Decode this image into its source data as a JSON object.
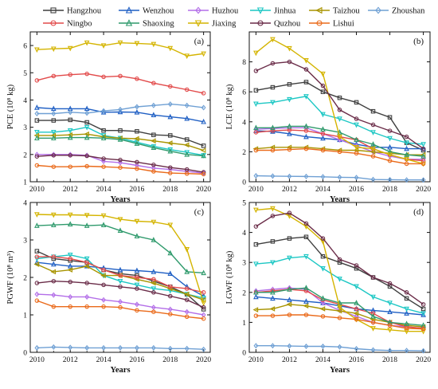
{
  "figure": {
    "legend": [
      {
        "name": "Hangzhou",
        "color": "#3f3f3f",
        "marker": "square"
      },
      {
        "name": "Wenzhou",
        "color": "#1f5fc4",
        "marker": "triangle-up"
      },
      {
        "name": "Huzhou",
        "color": "#b36ee8",
        "marker": "diamond"
      },
      {
        "name": "Jinhua",
        "color": "#1cc7c4",
        "marker": "triangle-down"
      },
      {
        "name": "Taizhou",
        "color": "#a89400",
        "marker": "triangle-left"
      },
      {
        "name": "Zhoushan",
        "color": "#6fa0d4",
        "marker": "diamond"
      },
      {
        "name": "Ningbo",
        "color": "#e24a4a",
        "marker": "circle"
      },
      {
        "name": "Shaoxing",
        "color": "#2f9a6c",
        "marker": "triangle-up"
      },
      {
        "name": "Jiaxing",
        "color": "#d4b400",
        "marker": "triangle-down"
      },
      {
        "name": "Quzhou",
        "color": "#6a2c48",
        "marker": "circle"
      },
      {
        "name": "Lishui",
        "color": "#ea6a1a",
        "marker": "circle"
      }
    ]
  },
  "chart_data": [
    {
      "type": "line",
      "panel_label": "(a)",
      "xlabel": "Years",
      "ylabel": "PCE (10⁸ kg)",
      "x": [
        2010,
        2011,
        2012,
        2013,
        2014,
        2015,
        2016,
        2017,
        2018,
        2019,
        2020
      ],
      "xticks": [
        "2010",
        "2012",
        "2014",
        "2016",
        "2018",
        "2020"
      ],
      "xtick_values": [
        2010,
        2012,
        2014,
        2016,
        2018,
        2020
      ],
      "ylim": [
        1,
        6.5
      ],
      "yticks": [
        "1",
        "2",
        "3",
        "4",
        "5",
        "6"
      ],
      "ytick_values": [
        1,
        2,
        3,
        4,
        5,
        6
      ],
      "series": [
        {
          "name": "Hangzhou",
          "values": [
            3.25,
            3.25,
            3.27,
            3.18,
            2.88,
            2.88,
            2.85,
            2.72,
            2.7,
            2.55,
            2.32
          ]
        },
        {
          "name": "Wenzhou",
          "values": [
            3.72,
            3.68,
            3.68,
            3.68,
            3.55,
            3.56,
            3.55,
            3.45,
            3.38,
            3.32,
            3.2
          ]
        },
        {
          "name": "Huzhou",
          "values": [
            2.0,
            2.0,
            2.0,
            1.97,
            1.75,
            1.7,
            1.6,
            1.5,
            1.45,
            1.38,
            1.32
          ]
        },
        {
          "name": "Jinhua",
          "values": [
            2.82,
            2.82,
            2.88,
            3.0,
            2.7,
            2.6,
            2.45,
            2.3,
            2.18,
            2.08,
            1.97
          ]
        },
        {
          "name": "Taizhou",
          "values": [
            2.7,
            2.7,
            2.72,
            2.75,
            2.65,
            2.6,
            2.58,
            2.5,
            2.42,
            2.35,
            2.15
          ]
        },
        {
          "name": "Zhoushan",
          "values": [
            3.5,
            3.5,
            3.55,
            3.52,
            3.6,
            3.65,
            3.75,
            3.8,
            3.85,
            3.8,
            3.72
          ]
        },
        {
          "name": "Ningbo",
          "values": [
            4.72,
            4.88,
            4.93,
            4.96,
            4.85,
            4.88,
            4.78,
            4.62,
            4.5,
            4.38,
            4.25
          ]
        },
        {
          "name": "Shaoxing",
          "values": [
            2.6,
            2.6,
            2.62,
            2.62,
            2.6,
            2.55,
            2.4,
            2.25,
            2.12,
            2.0,
            1.95
          ]
        },
        {
          "name": "Jiaxing",
          "values": [
            5.85,
            5.88,
            5.9,
            6.1,
            6.0,
            6.1,
            6.08,
            6.05,
            5.9,
            5.62,
            5.7
          ]
        },
        {
          "name": "Quzhou",
          "values": [
            1.93,
            1.97,
            1.97,
            1.95,
            1.85,
            1.8,
            1.72,
            1.62,
            1.52,
            1.45,
            1.35
          ]
        },
        {
          "name": "Lishui",
          "values": [
            1.6,
            1.55,
            1.55,
            1.57,
            1.55,
            1.52,
            1.48,
            1.38,
            1.32,
            1.3,
            1.28
          ]
        }
      ]
    },
    {
      "type": "line",
      "panel_label": "(b)",
      "xlabel": "Years",
      "ylabel": "LCE (10⁸ kg)",
      "x": [
        2010,
        2011,
        2012,
        2013,
        2014,
        2015,
        2016,
        2017,
        2018,
        2019,
        2020
      ],
      "xticks": [
        "2010",
        "2012",
        "2014",
        "2016",
        "2018",
        "2020"
      ],
      "xtick_values": [
        2010,
        2012,
        2014,
        2016,
        2018,
        2020
      ],
      "ylim": [
        0,
        10
      ],
      "yticks": [
        "0",
        "2",
        "4",
        "6",
        "8"
      ],
      "ytick_values": [
        0,
        2,
        4,
        6,
        8
      ],
      "series": [
        {
          "name": "Hangzhou",
          "values": [
            6.1,
            6.3,
            6.5,
            6.65,
            6.0,
            5.6,
            5.3,
            4.7,
            4.3,
            2.6,
            2.1
          ]
        },
        {
          "name": "Wenzhou",
          "values": [
            3.4,
            3.35,
            3.2,
            3.0,
            2.9,
            2.8,
            2.5,
            2.3,
            2.3,
            2.2,
            2.2
          ]
        },
        {
          "name": "Huzhou",
          "values": [
            3.5,
            3.55,
            3.6,
            3.6,
            3.2,
            2.8,
            2.4,
            2.0,
            1.7,
            1.5,
            1.5
          ]
        },
        {
          "name": "Jinhua",
          "values": [
            5.2,
            5.3,
            5.5,
            5.7,
            4.5,
            4.2,
            3.8,
            3.3,
            2.9,
            2.6,
            2.5
          ]
        },
        {
          "name": "Taizhou",
          "values": [
            2.2,
            2.3,
            2.3,
            2.3,
            2.2,
            2.1,
            2.1,
            2.0,
            1.9,
            1.8,
            1.8
          ]
        },
        {
          "name": "Zhoushan",
          "values": [
            0.4,
            0.38,
            0.36,
            0.35,
            0.33,
            0.3,
            0.28,
            0.15,
            0.14,
            0.12,
            0.12
          ]
        },
        {
          "name": "Ningbo",
          "values": [
            3.3,
            3.4,
            3.45,
            3.4,
            3.2,
            3.0,
            2.8,
            2.2,
            1.8,
            1.5,
            1.4
          ]
        },
        {
          "name": "Shaoxing",
          "values": [
            3.6,
            3.6,
            3.7,
            3.7,
            3.5,
            3.3,
            2.8,
            2.5,
            2.0,
            1.8,
            1.7
          ]
        },
        {
          "name": "Jiaxing",
          "values": [
            8.6,
            9.5,
            8.9,
            8.1,
            7.2,
            3.0,
            2.3,
            2.2,
            1.8,
            1.5,
            1.2
          ]
        },
        {
          "name": "Quzhou",
          "values": [
            7.4,
            7.9,
            8.0,
            7.5,
            6.4,
            4.8,
            4.2,
            3.8,
            3.4,
            3.0,
            2.2
          ]
        },
        {
          "name": "Lishui",
          "values": [
            2.1,
            2.1,
            2.15,
            2.2,
            2.1,
            2.0,
            1.9,
            1.7,
            1.4,
            1.2,
            1.2
          ]
        }
      ]
    },
    {
      "type": "line",
      "panel_label": "(c)",
      "xlabel": "Years",
      "ylabel": "PGWF (10⁸ m³)",
      "x": [
        2010,
        2011,
        2012,
        2013,
        2014,
        2015,
        2016,
        2017,
        2018,
        2019,
        2020
      ],
      "xticks": [
        "2010",
        "2012",
        "2014",
        "2016",
        "2018",
        "2020"
      ],
      "xtick_values": [
        2010,
        2012,
        2014,
        2016,
        2018,
        2020
      ],
      "ylim": [
        0,
        4
      ],
      "yticks": [
        "0",
        "1",
        "2",
        "3",
        "4"
      ],
      "ytick_values": [
        0,
        1,
        2,
        3,
        4
      ],
      "series": [
        {
          "name": "Hangzhou",
          "values": [
            2.7,
            2.5,
            2.45,
            2.4,
            2.2,
            2.1,
            2.05,
            1.9,
            1.75,
            1.55,
            1.15
          ]
        },
        {
          "name": "Wenzhou",
          "values": [
            2.4,
            2.35,
            2.3,
            2.3,
            2.25,
            2.2,
            2.18,
            2.15,
            2.1,
            1.75,
            1.5
          ]
        },
        {
          "name": "Huzhou",
          "values": [
            1.55,
            1.53,
            1.48,
            1.48,
            1.4,
            1.35,
            1.28,
            1.2,
            1.15,
            1.08,
            1.0
          ]
        },
        {
          "name": "Jinhua",
          "values": [
            2.5,
            2.55,
            2.6,
            2.5,
            2.05,
            1.9,
            1.8,
            1.7,
            1.65,
            1.55,
            1.45
          ]
        },
        {
          "name": "Taizhou",
          "values": [
            2.35,
            2.15,
            2.2,
            2.3,
            2.05,
            2.05,
            1.95,
            1.85,
            1.7,
            1.55,
            1.4
          ]
        },
        {
          "name": "Zhoushan",
          "values": [
            0.12,
            0.14,
            0.13,
            0.12,
            0.12,
            0.12,
            0.12,
            0.12,
            0.1,
            0.1,
            0.08
          ]
        },
        {
          "name": "Ningbo",
          "values": [
            2.55,
            2.55,
            2.5,
            2.4,
            2.2,
            2.05,
            2.0,
            1.95,
            1.75,
            1.7,
            1.6
          ]
        },
        {
          "name": "Shaoxing",
          "values": [
            3.38,
            3.4,
            3.42,
            3.38,
            3.4,
            3.25,
            3.1,
            3.0,
            2.65,
            2.15,
            2.12
          ]
        },
        {
          "name": "Jiaxing",
          "values": [
            3.68,
            3.67,
            3.67,
            3.66,
            3.65,
            3.55,
            3.5,
            3.48,
            3.4,
            2.75,
            1.32
          ]
        },
        {
          "name": "Quzhou",
          "values": [
            1.85,
            1.9,
            1.88,
            1.85,
            1.8,
            1.75,
            1.7,
            1.6,
            1.5,
            1.4,
            1.2
          ]
        },
        {
          "name": "Lishui",
          "values": [
            1.38,
            1.22,
            1.22,
            1.22,
            1.22,
            1.2,
            1.12,
            1.08,
            1.02,
            0.95,
            0.9
          ]
        }
      ]
    },
    {
      "type": "line",
      "panel_label": "(d)",
      "xlabel": "Years",
      "ylabel": "LGWF (10⁸ kg)",
      "x": [
        2010,
        2011,
        2012,
        2013,
        2014,
        2015,
        2016,
        2017,
        2018,
        2019,
        2020
      ],
      "xticks": [
        "2010",
        "2012",
        "2014",
        "2016",
        "2018",
        "2020"
      ],
      "xtick_values": [
        2010,
        2012,
        2014,
        2016,
        2018,
        2020
      ],
      "ylim": [
        0,
        5
      ],
      "yticks": [
        "0",
        "1",
        "2",
        "3",
        "4",
        "5"
      ],
      "ytick_values": [
        0,
        1,
        2,
        3,
        4,
        5
      ],
      "series": [
        {
          "name": "Hangzhou",
          "values": [
            3.6,
            3.7,
            3.8,
            3.85,
            3.2,
            3.0,
            2.8,
            2.5,
            2.2,
            1.8,
            1.45
          ]
        },
        {
          "name": "Wenzhou",
          "values": [
            1.85,
            1.8,
            1.75,
            1.7,
            1.65,
            1.55,
            1.45,
            1.4,
            1.35,
            1.3,
            1.25
          ]
        },
        {
          "name": "Huzhou",
          "values": [
            2.05,
            2.1,
            2.15,
            2.1,
            1.65,
            1.4,
            1.2,
            1.0,
            0.9,
            0.85,
            0.8
          ]
        },
        {
          "name": "Jinhua",
          "values": [
            2.95,
            3.0,
            3.15,
            3.2,
            2.8,
            2.45,
            2.2,
            1.85,
            1.65,
            1.45,
            1.3
          ]
        },
        {
          "name": "Taizhou",
          "values": [
            1.42,
            1.45,
            1.6,
            1.55,
            1.45,
            1.38,
            1.3,
            1.1,
            1.0,
            0.9,
            0.85
          ]
        },
        {
          "name": "Zhoushan",
          "values": [
            0.22,
            0.22,
            0.21,
            0.2,
            0.2,
            0.18,
            0.12,
            0.08,
            0.06,
            0.06,
            0.05
          ]
        },
        {
          "name": "Ningbo",
          "values": [
            2.0,
            2.05,
            2.1,
            2.05,
            1.75,
            1.6,
            1.45,
            1.3,
            1.0,
            0.85,
            0.8
          ]
        },
        {
          "name": "Shaoxing",
          "values": [
            2.0,
            2.0,
            2.1,
            2.15,
            1.8,
            1.65,
            1.65,
            1.2,
            1.0,
            0.95,
            0.9
          ]
        },
        {
          "name": "Jiaxing",
          "values": [
            4.75,
            4.8,
            4.55,
            4.2,
            3.7,
            1.5,
            1.1,
            0.8,
            0.75,
            0.7,
            0.7
          ]
        },
        {
          "name": "Quzhou",
          "values": [
            4.2,
            4.55,
            4.65,
            4.3,
            3.8,
            3.1,
            2.9,
            2.5,
            2.3,
            2.0,
            1.6
          ]
        },
        {
          "name": "Lishui",
          "values": [
            1.22,
            1.22,
            1.25,
            1.25,
            1.2,
            1.15,
            1.1,
            1.0,
            0.9,
            0.8,
            0.78
          ]
        }
      ]
    }
  ]
}
